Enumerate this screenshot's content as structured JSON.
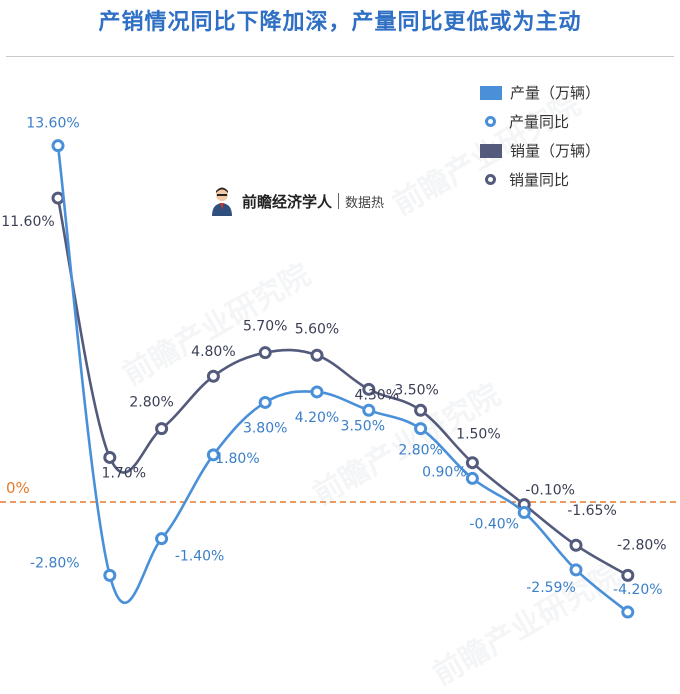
{
  "title": "产销情况同比下降加深，产量同比更低或为主动",
  "zero_label": "0%",
  "watermark": "前瞻产业研究院",
  "brand": {
    "name": "前瞻经济学人",
    "tag": "数据热"
  },
  "legend": [
    {
      "label": "产量（万辆）",
      "kind": "bar",
      "color": "#4a90d9"
    },
    {
      "label": "产量同比",
      "kind": "line",
      "color": "#4a90d9"
    },
    {
      "label": "销量（万辆）",
      "kind": "bar",
      "color": "#535a7c"
    },
    {
      "label": "销量同比",
      "kind": "line",
      "color": "#535a7c"
    }
  ],
  "colors": {
    "production": "#4a90d9",
    "sales": "#535a7c",
    "zero_line": "#e87a2c"
  },
  "chart_data": {
    "type": "line",
    "y_unit": "%",
    "ylim": [
      -5,
      15
    ],
    "zero_reference_line": true,
    "grid": false,
    "legend_position": "top-right",
    "series": [
      {
        "name": "产量同比",
        "values": [
          13.6,
          -2.8,
          -1.4,
          1.8,
          3.8,
          4.2,
          3.5,
          2.8,
          0.9,
          -0.4,
          -2.59,
          -4.2
        ],
        "labels": [
          "13.60%",
          "-2.80%",
          "-1.40%",
          "1.80%",
          "3.80%",
          "4.20%",
          "3.50%",
          "2.80%",
          "0.90%",
          "-0.40%",
          "-2.59%",
          "-4.20%"
        ]
      },
      {
        "name": "销量同比",
        "values": [
          11.6,
          1.7,
          2.8,
          4.8,
          5.7,
          5.6,
          4.3,
          3.5,
          1.5,
          -0.1,
          -1.65,
          -2.8
        ],
        "labels": [
          "11.60%",
          "1.70%",
          "2.80%",
          "4.80%",
          "5.70%",
          "5.60%",
          "4.30%",
          "3.50%",
          "1.50%",
          "-0.10%",
          "-1.65%",
          "-2.80%"
        ]
      }
    ]
  }
}
